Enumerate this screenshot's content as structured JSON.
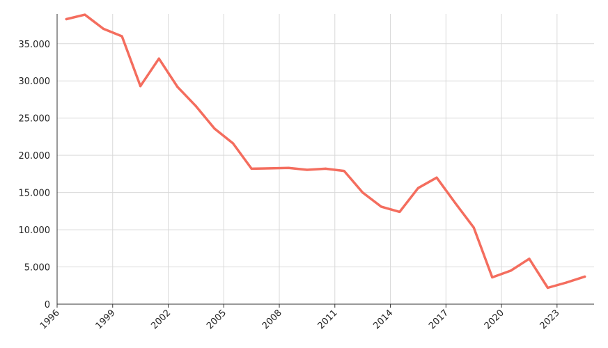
{
  "chart_data": {
    "type": "line",
    "title": "",
    "xlabel": "",
    "ylabel": "",
    "xlim": [
      1996,
      2025
    ],
    "ylim": [
      0,
      39000
    ],
    "x_ticks": [
      1996,
      1999,
      2002,
      2005,
      2008,
      2011,
      2014,
      2017,
      2020,
      2023
    ],
    "x_tick_labels": [
      "1996",
      "1999",
      "2002",
      "2005",
      "2008",
      "2011",
      "2014",
      "2017",
      "2020",
      "2023"
    ],
    "y_ticks": [
      0,
      5000,
      10000,
      15000,
      20000,
      25000,
      30000,
      35000
    ],
    "y_tick_labels": [
      "0",
      "5.000",
      "10.000",
      "15.000",
      "20.000",
      "25.000",
      "30.000",
      "35.000"
    ],
    "grid": true,
    "series": [
      {
        "color": "#f46d5e",
        "points": [
          [
            1996.5,
            38300
          ],
          [
            1997.5,
            38900
          ],
          [
            1998.5,
            37000
          ],
          [
            1999.5,
            36000
          ],
          [
            2000.5,
            29300
          ],
          [
            2001.5,
            33000
          ],
          [
            2002.5,
            29200
          ],
          [
            2003.5,
            26600
          ],
          [
            2004.5,
            23600
          ],
          [
            2005.5,
            21600
          ],
          [
            2006.5,
            18200
          ],
          [
            2007.5,
            18250
          ],
          [
            2008.5,
            18300
          ],
          [
            2009.5,
            18050
          ],
          [
            2010.5,
            18200
          ],
          [
            2011.5,
            17900
          ],
          [
            2012.5,
            15000
          ],
          [
            2013.5,
            13100
          ],
          [
            2014.5,
            12400
          ],
          [
            2015.5,
            15600
          ],
          [
            2016.5,
            17000
          ],
          [
            2017.5,
            13600
          ],
          [
            2018.5,
            10300
          ],
          [
            2019.5,
            3600
          ],
          [
            2020.5,
            4500
          ],
          [
            2021.5,
            6100
          ],
          [
            2022.5,
            2200
          ],
          [
            2023.5,
            2900
          ],
          [
            2024.5,
            3700
          ]
        ]
      }
    ]
  }
}
